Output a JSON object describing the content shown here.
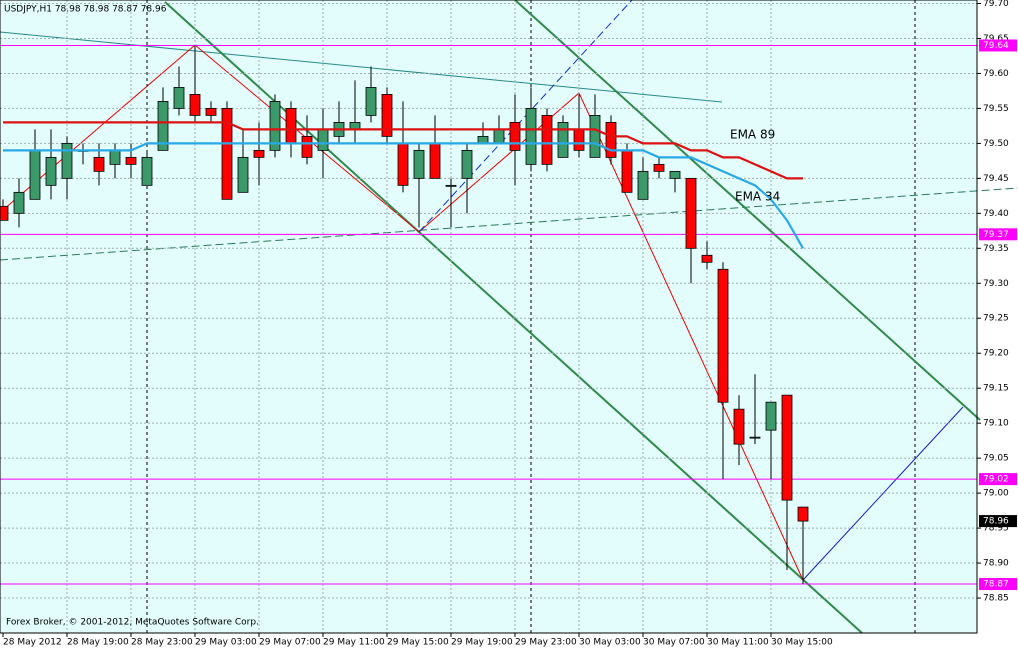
{
  "header": "USDJPY,H1  78.98 78.98 78.87 78.96",
  "footer": "Forex Broker, © 2001-2012, MetaQuotes Software Corp.",
  "chart_data": {
    "type": "candlestick",
    "categories": [
      "28 May 2012",
      null,
      null,
      null,
      "28 May 19:00",
      null,
      null,
      null,
      "28 May 23:00",
      null,
      null,
      null,
      "29 May 03:00",
      null,
      null,
      null,
      "29 May 07:00",
      null,
      null,
      null,
      "29 May 11:00",
      null,
      null,
      null,
      "29 May 15:00",
      null,
      null,
      null,
      "29 May 19:00",
      null,
      null,
      null,
      "29 May 23:00",
      null,
      null,
      null,
      "30 May 03:00",
      null,
      null,
      null,
      "30 May 07:00",
      null,
      null,
      null,
      "30 May 11:00",
      null,
      null,
      null,
      "30 May 15:00",
      null,
      null
    ],
    "open": [
      79.41,
      79.4,
      79.42,
      79.44,
      79.45,
      79.49,
      79.48,
      79.47,
      79.48,
      79.44,
      79.49,
      79.55,
      79.57,
      79.55,
      79.55,
      79.43,
      79.49,
      79.49,
      79.55,
      79.51,
      79.49,
      79.51,
      79.52,
      79.54,
      79.57,
      79.5,
      79.45,
      79.5,
      79.44,
      79.45,
      79.5,
      79.5,
      79.53,
      79.47,
      79.54,
      79.48,
      79.52,
      79.48,
      79.53,
      79.49,
      79.42,
      79.47,
      79.45,
      79.45,
      79.34,
      79.32,
      79.12,
      79.08,
      79.09,
      79.14,
      78.98
    ],
    "high": [
      79.42,
      79.45,
      79.52,
      79.52,
      79.51,
      79.5,
      79.5,
      79.5,
      79.5,
      79.49,
      79.58,
      79.61,
      79.64,
      79.56,
      79.56,
      79.52,
      79.53,
      79.57,
      79.56,
      79.54,
      79.55,
      79.56,
      79.59,
      79.61,
      79.58,
      79.56,
      79.5,
      79.54,
      79.45,
      79.5,
      79.53,
      79.54,
      79.57,
      79.58,
      79.55,
      79.54,
      79.57,
      79.57,
      79.54,
      79.5,
      79.48,
      79.48,
      79.46,
      79.45,
      79.36,
      79.33,
      79.14,
      79.17,
      79.13,
      79.14,
      78.98
    ],
    "low": [
      79.39,
      79.38,
      79.42,
      79.42,
      79.42,
      79.47,
      79.44,
      79.45,
      79.45,
      79.44,
      79.49,
      79.54,
      79.53,
      79.53,
      79.42,
      79.43,
      79.44,
      79.48,
      79.48,
      79.47,
      79.45,
      79.5,
      79.5,
      79.53,
      79.5,
      79.43,
      79.38,
      79.45,
      79.38,
      79.4,
      79.5,
      79.5,
      79.44,
      79.46,
      79.46,
      79.48,
      79.48,
      79.48,
      79.47,
      79.43,
      79.42,
      79.45,
      79.43,
      79.3,
      79.32,
      79.02,
      79.04,
      79.07,
      79.02,
      78.89,
      78.87
    ],
    "close": [
      79.39,
      79.43,
      79.49,
      79.48,
      79.5,
      79.49,
      79.46,
      79.49,
      79.47,
      79.48,
      79.56,
      79.58,
      79.54,
      79.54,
      79.42,
      79.48,
      79.48,
      79.56,
      79.5,
      79.48,
      79.52,
      79.53,
      79.53,
      79.58,
      79.51,
      79.44,
      79.49,
      79.45,
      79.44,
      79.49,
      79.51,
      79.52,
      79.49,
      79.55,
      79.47,
      79.53,
      79.49,
      79.54,
      79.48,
      79.43,
      79.46,
      79.46,
      79.46,
      79.35,
      79.33,
      79.13,
      79.07,
      79.08,
      79.13,
      78.99,
      78.96
    ],
    "up_color": "#3c9a6a",
    "down_color": "#ff0000",
    "ylim": [
      78.8,
      79.705
    ],
    "yticks": [
      {
        "value": 79.7,
        "label": "79.70"
      },
      79.65,
      {
        "value": 79.6,
        "label": "79.60"
      },
      79.55,
      {
        "value": 79.5,
        "label": "79.50"
      },
      79.45,
      {
        "value": 79.4,
        "label": "79.40"
      },
      79.35,
      {
        "value": 79.3,
        "label": "79.30"
      },
      79.25,
      {
        "value": 79.2,
        "label": "79.20"
      },
      79.15,
      {
        "value": 79.1,
        "label": "79.10"
      },
      79.05,
      {
        "value": 79.0,
        "label": "79.00"
      },
      78.95,
      {
        "value": 78.9,
        "label": "78.90"
      },
      78.85
    ],
    "grid": true,
    "series": [
      {
        "name": "EMA 89",
        "color": "#dd1111",
        "values": [
          79.53,
          79.53,
          79.53,
          79.53,
          79.53,
          79.53,
          79.53,
          79.53,
          79.53,
          79.53,
          79.53,
          79.53,
          79.53,
          79.53,
          79.53,
          79.52,
          79.52,
          79.52,
          79.52,
          79.52,
          79.52,
          79.52,
          79.52,
          79.52,
          79.52,
          79.52,
          79.52,
          79.52,
          79.52,
          79.52,
          79.52,
          79.52,
          79.52,
          79.52,
          79.52,
          79.52,
          79.52,
          79.52,
          79.51,
          79.51,
          79.5,
          79.5,
          79.5,
          79.49,
          79.49,
          79.48,
          79.48,
          79.47,
          79.46,
          79.45,
          79.45
        ]
      },
      {
        "name": "EMA 34",
        "color": "#29a8e8",
        "values": [
          79.49,
          79.49,
          79.49,
          79.49,
          79.49,
          79.49,
          79.49,
          79.49,
          79.49,
          79.5,
          79.5,
          79.5,
          79.5,
          79.5,
          79.5,
          79.5,
          79.5,
          79.5,
          79.5,
          79.5,
          79.5,
          79.5,
          79.5,
          79.5,
          79.5,
          79.5,
          79.5,
          79.5,
          79.5,
          79.5,
          79.5,
          79.5,
          79.5,
          79.5,
          79.5,
          79.5,
          79.5,
          79.5,
          79.49,
          79.49,
          79.49,
          79.48,
          79.48,
          79.48,
          79.47,
          79.46,
          79.45,
          79.44,
          79.42,
          79.39,
          79.35
        ]
      }
    ],
    "hlines": {
      "color": "#ff00ff",
      "values": [
        79.64,
        79.37,
        79.02,
        78.87
      ]
    },
    "current_price": 78.96
  }
}
